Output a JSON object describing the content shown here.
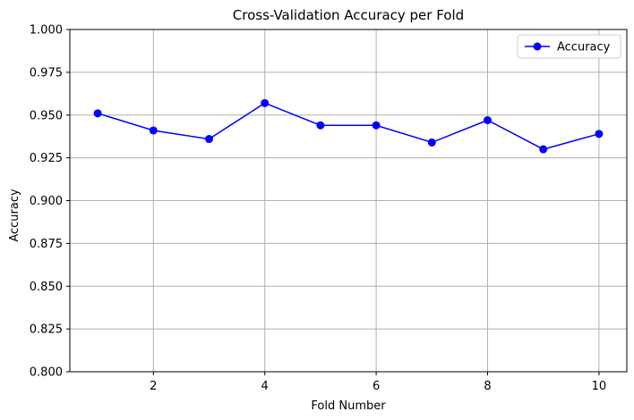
{
  "chart_data": {
    "type": "line",
    "title": "Cross-Validation Accuracy per Fold",
    "xlabel": "Fold Number",
    "ylabel": "Accuracy",
    "xlim": [
      0.5,
      10.5
    ],
    "ylim": [
      0.8,
      1.0
    ],
    "xticks": [
      2,
      4,
      6,
      8,
      10
    ],
    "yticks": [
      0.8,
      0.825,
      0.85,
      0.875,
      0.9,
      0.925,
      0.95,
      0.975,
      1.0
    ],
    "ytick_labels": [
      "0.800",
      "0.825",
      "0.850",
      "0.875",
      "0.900",
      "0.925",
      "0.950",
      "0.975",
      "1.000"
    ],
    "grid": true,
    "legend_position": "top-right",
    "series": [
      {
        "name": "Accuracy",
        "color": "#0000ff",
        "marker": "circle",
        "x": [
          1,
          2,
          3,
          4,
          5,
          6,
          7,
          8,
          9,
          10
        ],
        "values": [
          0.951,
          0.941,
          0.936,
          0.957,
          0.944,
          0.944,
          0.934,
          0.947,
          0.93,
          0.939
        ]
      }
    ]
  }
}
